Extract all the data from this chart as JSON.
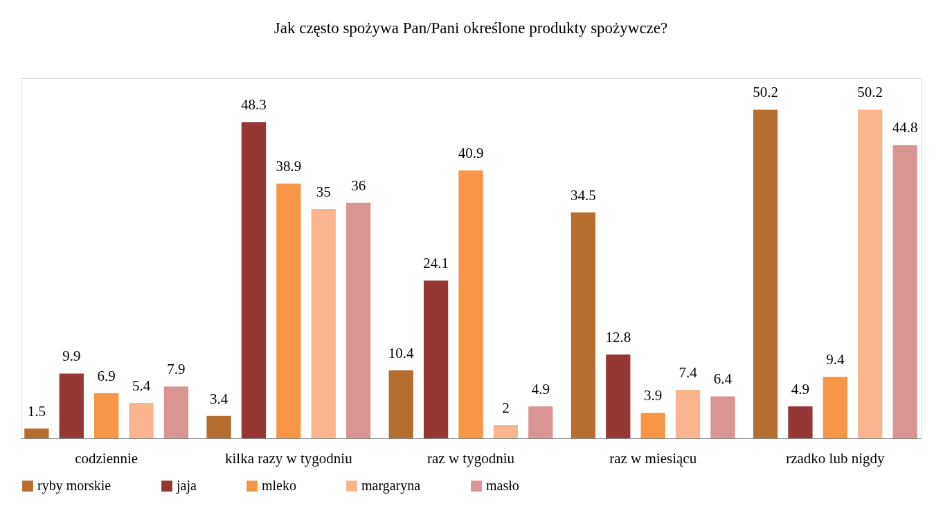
{
  "chart_data": {
    "type": "bar",
    "title": "Jak często spożywa Pan/Pani określone produkty spożywcze?",
    "categories": [
      "codziennie",
      "kilka razy w tygodniu",
      "raz w tygodniu",
      "raz w miesiącu",
      "rzadko lub nigdy"
    ],
    "series": [
      {
        "name": "ryby morskie",
        "color": "#b56d30",
        "values": [
          1.5,
          3.4,
          10.4,
          34.5,
          50.2
        ]
      },
      {
        "name": "jaja",
        "color": "#953735",
        "values": [
          9.9,
          48.3,
          24.1,
          12.8,
          4.9
        ]
      },
      {
        "name": "mleko",
        "color": "#f79646",
        "values": [
          6.9,
          38.9,
          40.9,
          3.9,
          9.4
        ]
      },
      {
        "name": "margaryna",
        "color": "#fab48e",
        "values": [
          5.4,
          35,
          2,
          7.4,
          50.2
        ]
      },
      {
        "name": "masło",
        "color": "#d99594",
        "values": [
          7.9,
          36,
          4.9,
          6.4,
          44.8
        ]
      }
    ],
    "data_labels": true,
    "legend": "bottom",
    "grid": false
  }
}
